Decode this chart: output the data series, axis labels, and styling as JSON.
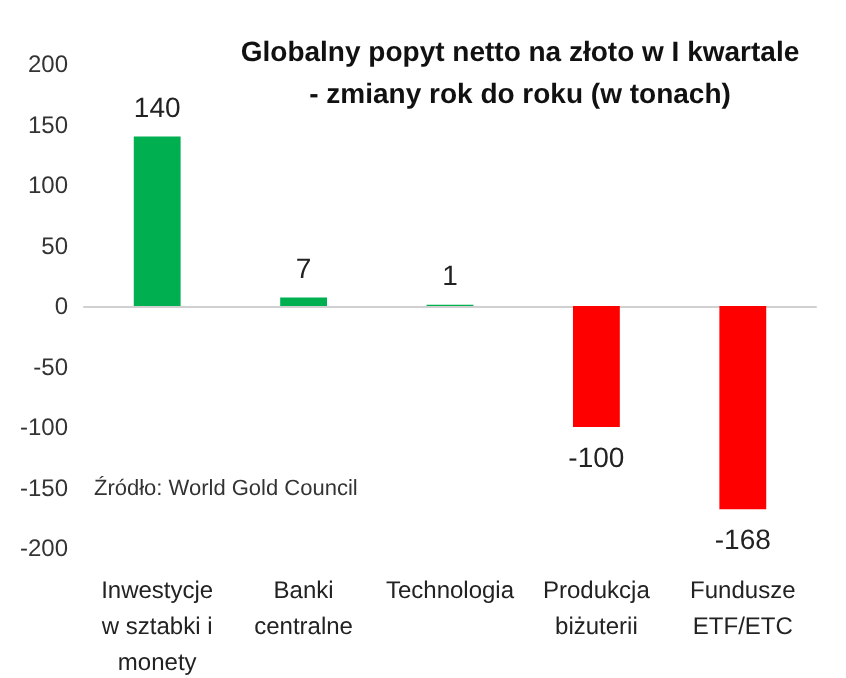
{
  "chart_data": {
    "type": "bar",
    "title": "Globalny popyt netto na złoto w I kwartale\n- zmiany rok do roku (w tonach)",
    "categories": [
      "Inwestycje\nw sztabki i\nmonety",
      "Banki\ncentralne",
      "Technologia",
      "Produkcja\nbiżuterii",
      "Fundusze\nETF/ETC"
    ],
    "values": [
      140,
      7,
      1,
      -100,
      -168
    ],
    "colors": [
      "#00b050",
      "#00b050",
      "#00b050",
      "#ff0000",
      "#ff0000"
    ],
    "ylim": [
      -200,
      200
    ],
    "yticks": [
      -200,
      -150,
      -100,
      -50,
      0,
      50,
      100,
      150,
      200
    ],
    "data_labels": true,
    "annotations": [
      "Źródło: World Gold Council"
    ]
  }
}
